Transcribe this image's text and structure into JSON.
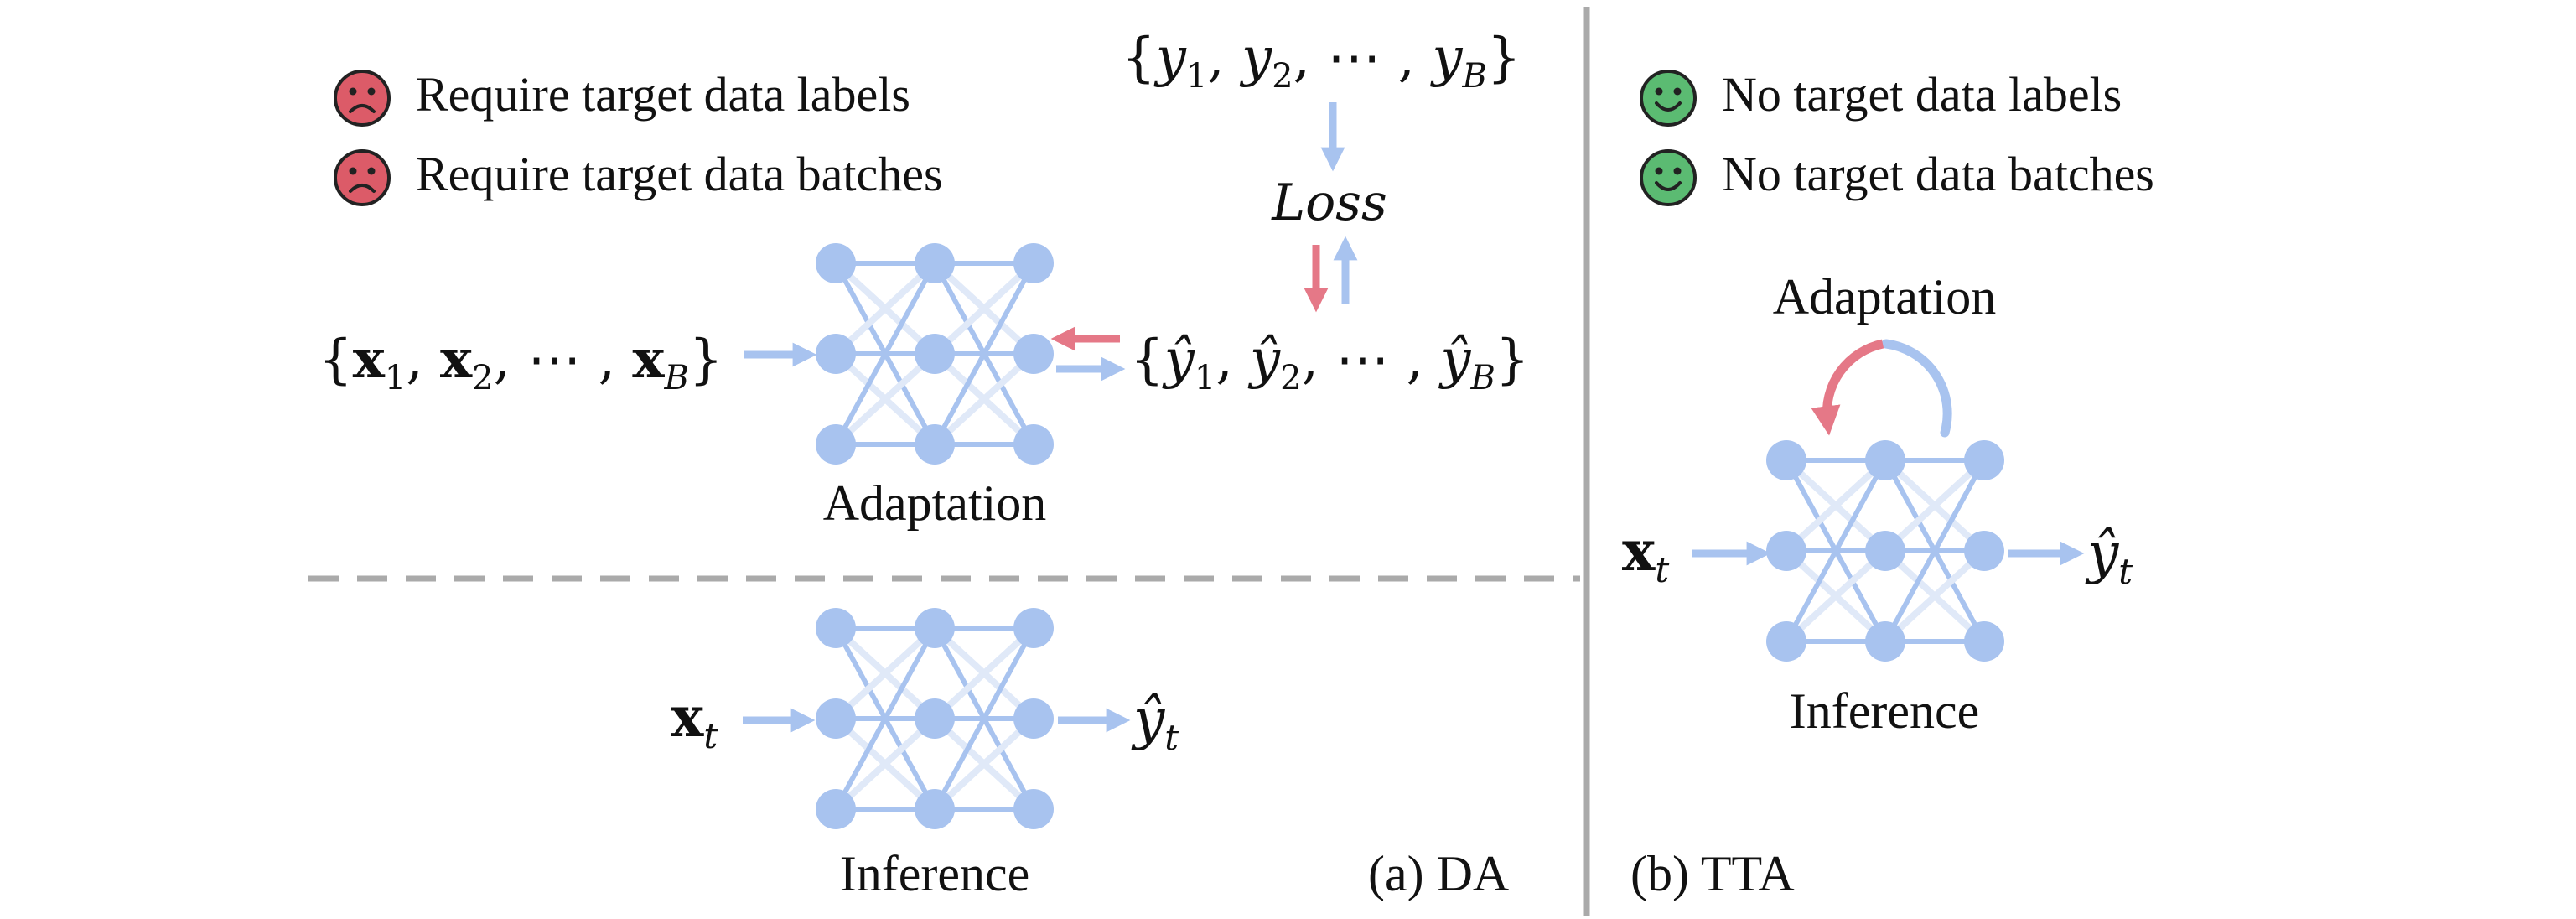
{
  "colors": {
    "node": "#a8c3ef",
    "edge_strong": "#a8c3ef",
    "edge_faint": "#e0e9f8",
    "arrow_blue": "#a8c3ef",
    "arrow_red": "#e57887",
    "sad_face": "#dc5b68",
    "happy_face": "#5bbb72",
    "divider_solid": "#aaaaaa",
    "divider_dashed": "#aaaaaa",
    "text": "#111111"
  },
  "left": {
    "requirements": [
      {
        "icon": "sad-face-icon",
        "text": "Require target data labels"
      },
      {
        "icon": "sad-face-icon",
        "text": "Require target data batches"
      }
    ],
    "adaptation": {
      "input": {
        "prefix": "{",
        "items": [
          "x",
          "1",
          ", ",
          "x",
          "2",
          ", ⋯ , ",
          "x",
          "B",
          "}"
        ]
      },
      "labels": {
        "text": "{y₁, y₂, ⋯ , y_B}"
      },
      "loss": "Loss",
      "output": {
        "text": "{ŷ₁, ŷ₂, ⋯ , ŷ_B}"
      },
      "caption": "Adaptation"
    },
    "inference": {
      "input": "x",
      "input_sub": "t",
      "output": "ŷ",
      "output_sub": "t",
      "caption": "Inference"
    },
    "panel_label": "(a) DA"
  },
  "right": {
    "benefits": [
      {
        "icon": "happy-face-icon",
        "text": "No target data labels"
      },
      {
        "icon": "happy-face-icon",
        "text": "No target data batches"
      }
    ],
    "adaptation_caption": "Adaptation",
    "input": "x",
    "input_sub": "t",
    "output": "ŷ",
    "output_sub": "t",
    "inference_caption": "Inference",
    "panel_label": "(b) TTA"
  }
}
